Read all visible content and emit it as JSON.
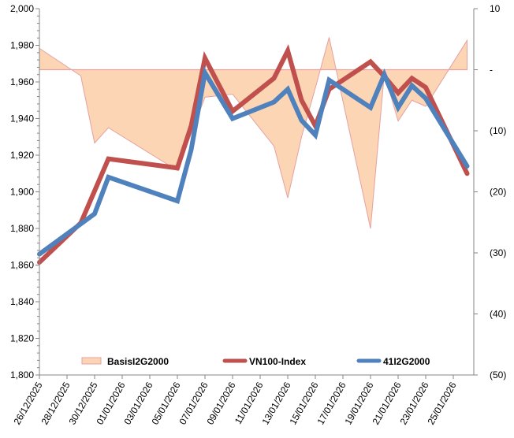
{
  "chart_data": {
    "type": "line",
    "title": "",
    "xlabel": "",
    "ylabel": "",
    "y2label": "",
    "ylim": [
      1800,
      2000
    ],
    "y2lim": [
      -50,
      10
    ],
    "yticks": [
      1800,
      1820,
      1840,
      1860,
      1880,
      1900,
      1920,
      1940,
      1960,
      1980,
      2000
    ],
    "ytick_labels": [
      "1,800",
      "1,820",
      "1,840",
      "1,860",
      "1,880",
      "1,900",
      "1,920",
      "1,940",
      "1,960",
      "1,980",
      "2,000"
    ],
    "y2ticks": [
      -50,
      -40,
      -30,
      -20,
      -10,
      0,
      10
    ],
    "y2tick_labels": [
      "(50)",
      "(40)",
      "(30)",
      "(20)",
      "(10)",
      "-",
      "10"
    ],
    "x_range_days": [
      0,
      31
    ],
    "xtick_days": [
      0,
      2,
      4,
      6,
      8,
      10,
      12,
      14,
      16,
      18,
      20,
      22,
      24,
      26,
      28,
      30
    ],
    "xtick_labels": [
      "26/12/2025",
      "28/12/2025",
      "30/12/2025",
      "01/01/2026",
      "03/01/2026",
      "05/01/2026",
      "07/01/2026",
      "09/01/2026",
      "11/01/2026",
      "13/01/2026",
      "15/01/2026",
      "17/01/2026",
      "19/01/2026",
      "21/01/2026",
      "23/01/2026",
      "25/01/2026"
    ],
    "grid": false,
    "legend_position": "bottom-inside",
    "x_days": [
      0,
      3,
      4,
      5,
      10,
      11,
      12,
      14,
      17,
      18,
      19,
      20,
      21,
      24,
      25,
      26,
      27,
      28,
      31
    ],
    "series": [
      {
        "name": "BasisI2G2000",
        "kind": "area",
        "axis": "right",
        "color": "#FCD5B5",
        "edge_color": "#E6A0A0",
        "x_days": [
          0,
          3,
          4,
          5,
          10,
          12,
          14,
          17,
          18,
          19,
          20,
          21,
          24,
          25,
          26,
          27,
          28,
          31
        ],
        "values": [
          3.5,
          -1.0,
          -12.0,
          -9.5,
          -16.5,
          -4.5,
          -4.0,
          -12.5,
          -21.0,
          -11.0,
          -3.0,
          5.3,
          -26.0,
          -0.6,
          -8.4,
          -5.0,
          -6.0,
          4.8
        ]
      },
      {
        "name": "VN100-Index",
        "kind": "line",
        "axis": "left",
        "color": "#C0504D",
        "x_days": [
          0,
          3,
          5,
          10,
          11,
          12,
          14,
          17,
          18,
          19,
          20,
          21,
          24,
          25,
          26,
          27,
          28,
          31
        ],
        "values": [
          1861.5,
          1883,
          1918,
          1913,
          1936,
          1973,
          1944,
          1962,
          1977,
          1950,
          1936,
          1956,
          1971,
          1963,
          1954,
          1962,
          1957,
          1910
        ]
      },
      {
        "name": "41I2G2000",
        "kind": "line",
        "axis": "left",
        "color": "#4F81BD",
        "x_days": [
          0,
          4,
          5,
          10,
          11,
          12,
          14,
          17,
          18,
          19,
          20,
          21,
          24,
          25,
          26,
          27,
          28,
          31
        ],
        "values": [
          1866,
          1888,
          1908,
          1895,
          1923,
          1965,
          1940,
          1949,
          1956,
          1939,
          1931,
          1961,
          1946,
          1964,
          1946,
          1958,
          1951,
          1914
        ]
      }
    ]
  }
}
